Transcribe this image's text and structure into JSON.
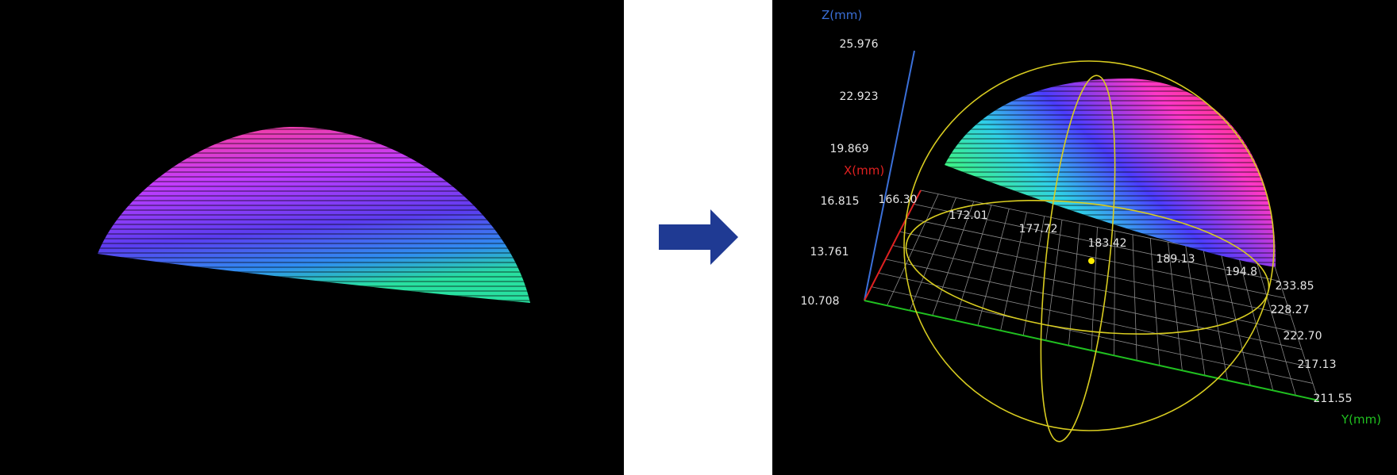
{
  "right_view": {
    "z_axis": {
      "label": "Z(mm)",
      "ticks": [
        "25.976",
        "22.923",
        "19.869",
        "16.815",
        "13.761",
        "10.708"
      ]
    },
    "x_axis": {
      "label": "X(mm)",
      "ticks": [
        "166.30",
        "172.01",
        "177.72",
        "183.42",
        "189.13",
        "194.8"
      ]
    },
    "y_axis": {
      "label": "Y(mm)",
      "ticks": [
        "233.85",
        "228.27",
        "222.70",
        "217.13",
        "211.55"
      ]
    }
  }
}
